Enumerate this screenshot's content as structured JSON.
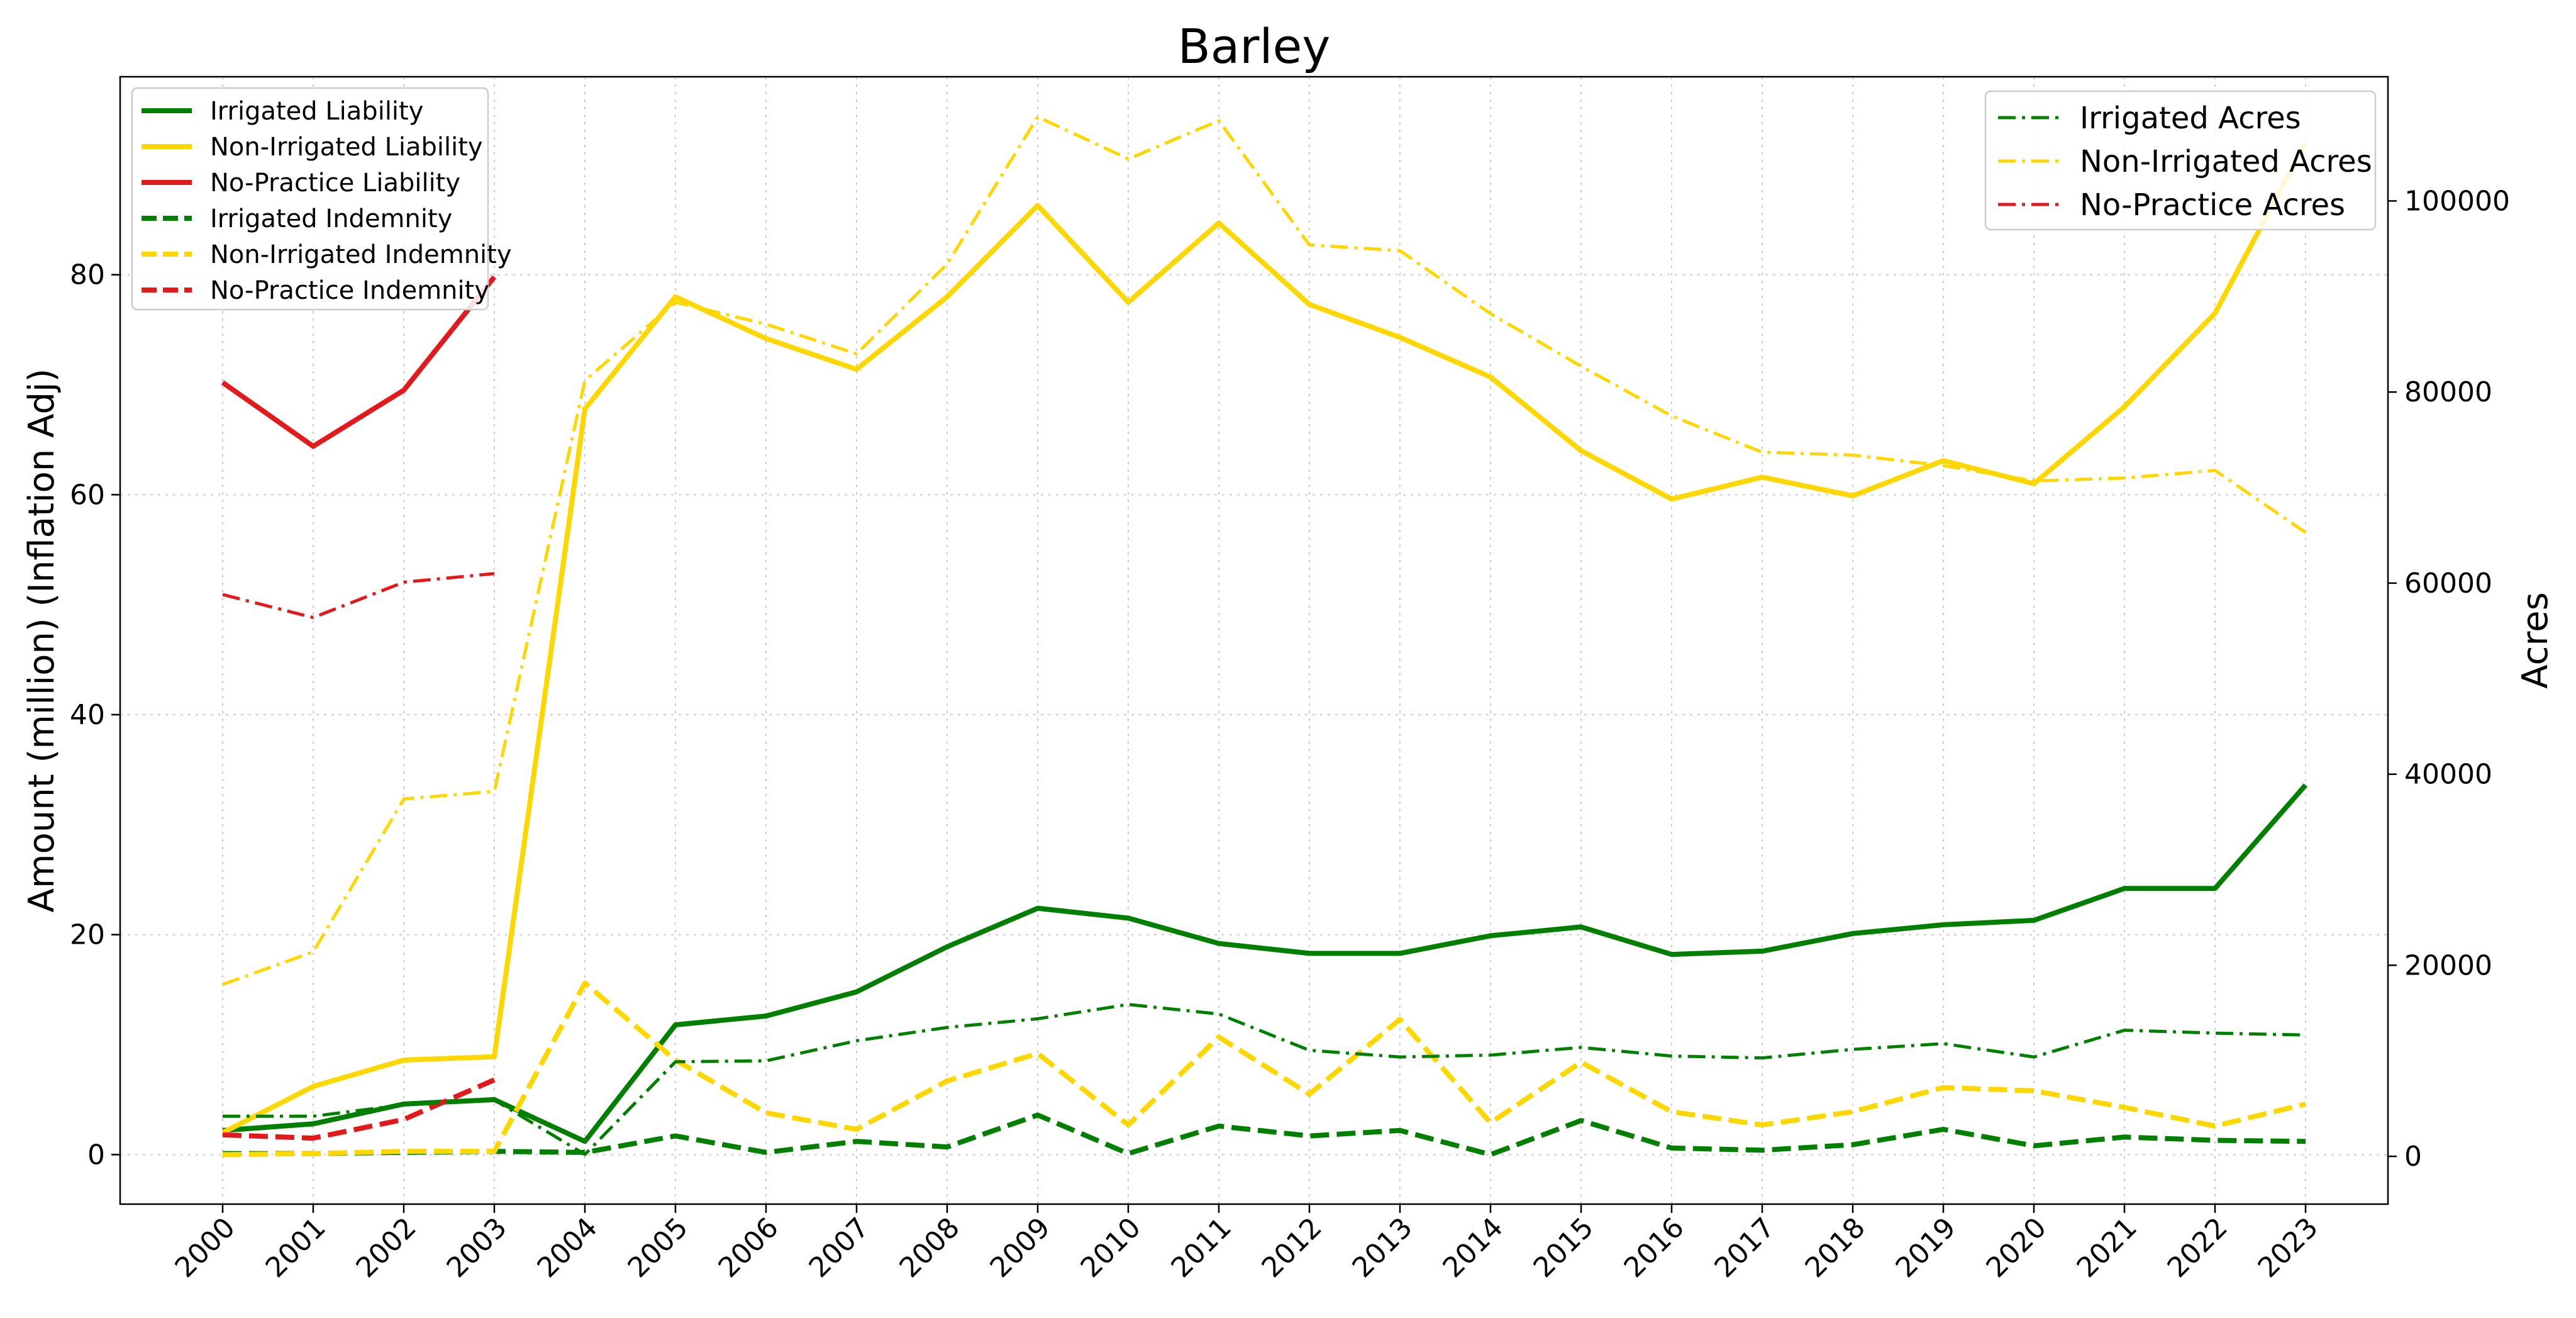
{
  "chart_data": {
    "type": "line",
    "title": "Barley",
    "ylabel": "Amount (million) (Inflation Adj)",
    "y2label": "Acres",
    "x": [
      "2000",
      "2001",
      "2002",
      "2003",
      "2004",
      "2005",
      "2006",
      "2007",
      "2008",
      "2009",
      "2010",
      "2011",
      "2012",
      "2013",
      "2014",
      "2015",
      "2016",
      "2017",
      "2018",
      "2019",
      "2020",
      "2021",
      "2022",
      "2023"
    ],
    "ylim": [
      -4.5,
      98
    ],
    "yticks": [
      0,
      20,
      40,
      60,
      80
    ],
    "y2lim": [
      -5000,
      113000
    ],
    "y2ticks": [
      0,
      20000,
      40000,
      60000,
      80000,
      100000
    ],
    "grid": true,
    "legend_left_position": "top-left",
    "legend_right_position": "top-right",
    "series": [
      {
        "name": "Irrigated Liability",
        "axis": "left",
        "style": "solid",
        "color": "#007f00",
        "values": [
          2.2,
          2.8,
          4.6,
          5.0,
          1.2,
          11.8,
          12.6,
          14.8,
          18.9,
          22.4,
          21.5,
          19.2,
          18.3,
          18.3,
          19.9,
          20.7,
          18.2,
          18.5,
          20.1,
          20.9,
          21.3,
          24.2,
          24.2,
          33.6
        ]
      },
      {
        "name": "Non-Irrigated Liability",
        "axis": "left",
        "style": "solid",
        "color": "#ffd700",
        "values": [
          2.0,
          6.2,
          8.6,
          8.9,
          67.8,
          78.0,
          74.2,
          71.4,
          78.0,
          86.3,
          77.5,
          84.7,
          77.3,
          74.3,
          70.7,
          64.0,
          59.6,
          61.6,
          59.9,
          63.1,
          61.0,
          68.0,
          76.5,
          92.0
        ]
      },
      {
        "name": "No-Practice Liability",
        "axis": "left",
        "style": "solid",
        "color": "#e31a1c",
        "values": [
          70.2,
          64.4,
          69.5,
          79.8,
          null,
          null,
          null,
          null,
          null,
          null,
          null,
          null,
          null,
          null,
          null,
          null,
          null,
          null,
          null,
          null,
          null,
          null,
          null,
          null
        ]
      },
      {
        "name": "Irrigated Indemnity",
        "axis": "left",
        "style": "dashed",
        "color": "#007f00",
        "values": [
          0.1,
          0.1,
          0.2,
          0.3,
          0.2,
          1.7,
          0.2,
          1.2,
          0.7,
          3.6,
          0.1,
          2.6,
          1.7,
          2.2,
          0.0,
          3.1,
          0.6,
          0.4,
          0.9,
          2.3,
          0.8,
          1.6,
          1.3,
          1.2
        ]
      },
      {
        "name": "Non-Irrigated Indemnity",
        "axis": "left",
        "style": "dashed",
        "color": "#ffd700",
        "values": [
          0.0,
          0.1,
          0.3,
          0.3,
          15.6,
          8.6,
          3.8,
          2.3,
          6.7,
          9.2,
          2.7,
          10.7,
          5.5,
          12.3,
          2.9,
          8.4,
          3.9,
          2.7,
          3.9,
          6.1,
          5.8,
          4.3,
          2.6,
          4.6
        ]
      },
      {
        "name": "No-Practice Indemnity",
        "axis": "left",
        "style": "dashed",
        "color": "#e31a1c",
        "values": [
          1.8,
          1.5,
          3.2,
          6.8,
          null,
          null,
          null,
          null,
          null,
          null,
          null,
          null,
          null,
          null,
          null,
          null,
          null,
          null,
          null,
          null,
          null,
          null,
          null,
          null
        ]
      },
      {
        "name": "Irrigated Acres",
        "axis": "right",
        "style": "dashdot",
        "color": "#007f00",
        "values": [
          4200,
          4200,
          5400,
          5900,
          200,
          9900,
          10000,
          12100,
          13500,
          14400,
          15900,
          14900,
          11100,
          10400,
          10600,
          11400,
          10500,
          10300,
          11200,
          11800,
          10400,
          13200,
          12900,
          12700
        ]
      },
      {
        "name": "Non-Irrigated Acres",
        "axis": "right",
        "style": "dashdot",
        "color": "#ffd700",
        "values": [
          18000,
          21400,
          37400,
          38200,
          81200,
          89400,
          87100,
          84000,
          93400,
          108800,
          104400,
          108400,
          95400,
          94800,
          88200,
          82700,
          77500,
          73700,
          73400,
          72300,
          70700,
          71000,
          71800,
          65300
        ]
      },
      {
        "name": "No-Practice Acres",
        "axis": "right",
        "style": "dashdot",
        "color": "#e31a1c",
        "values": [
          58800,
          56400,
          60100,
          61000,
          null,
          null,
          null,
          null,
          null,
          null,
          null,
          null,
          null,
          null,
          null,
          null,
          null,
          null,
          null,
          null,
          null,
          null,
          null,
          null
        ]
      }
    ]
  },
  "legend_left": [
    "Irrigated Liability",
    "Non-Irrigated Liability",
    "No-Practice Liability",
    "Irrigated Indemnity",
    "Non-Irrigated Indemnity",
    "No-Practice Indemnity"
  ],
  "legend_right": [
    "Irrigated Acres",
    "Non-Irrigated Acres",
    "No-Practice Acres"
  ]
}
